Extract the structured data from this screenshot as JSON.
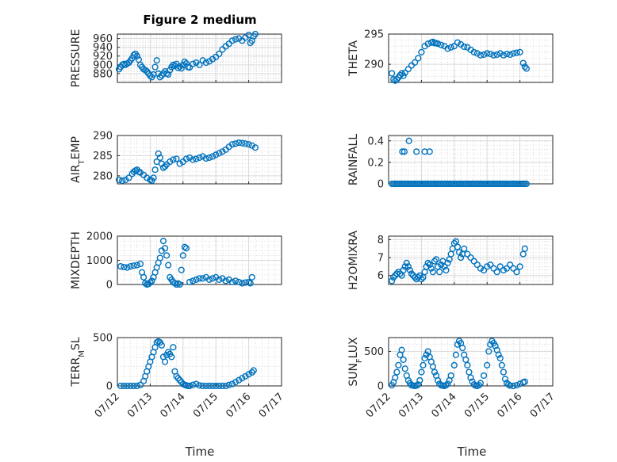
{
  "figure": {
    "title": "Figure 2 medium",
    "xlabel": "Time",
    "marker_color": "#0072BD",
    "xticks": [
      "07/12",
      "07/13",
      "07/14",
      "07/15",
      "07/16",
      "07/17"
    ]
  },
  "chart_data": [
    {
      "id": "pressure",
      "type": "scatter",
      "ylabel": "PRESSURE",
      "ylim": [
        860,
        970
      ],
      "yticks": [
        880,
        900,
        920,
        940,
        960
      ],
      "xlim": [
        0,
        5
      ],
      "grid": true,
      "x": [
        0.05,
        0.1,
        0.15,
        0.2,
        0.25,
        0.3,
        0.35,
        0.4,
        0.45,
        0.5,
        0.55,
        0.6,
        0.65,
        0.7,
        0.75,
        0.8,
        0.85,
        0.9,
        0.95,
        1.0,
        1.05,
        1.1,
        1.15,
        1.2,
        1.25,
        1.3,
        1.35,
        1.4,
        1.45,
        1.5,
        1.55,
        1.6,
        1.65,
        1.7,
        1.75,
        1.8,
        1.85,
        1.9,
        1.95,
        2.0,
        2.05,
        2.1,
        2.15,
        2.2,
        2.3,
        2.4,
        2.5,
        2.6,
        2.7,
        2.8,
        2.9,
        3.0,
        3.1,
        3.2,
        3.3,
        3.4,
        3.5,
        3.6,
        3.7,
        3.8,
        3.9,
        4.0,
        4.05,
        4.1,
        4.15,
        4.2
      ],
      "y": [
        890,
        895,
        900,
        902,
        900,
        903,
        905,
        910,
        915,
        922,
        925,
        920,
        912,
        900,
        895,
        890,
        888,
        885,
        880,
        875,
        872,
        878,
        895,
        910,
        880,
        872,
        876,
        880,
        885,
        880,
        878,
        888,
        895,
        900,
        898,
        902,
        893,
        896,
        892,
        900,
        907,
        903,
        895,
        894,
        902,
        905,
        900,
        910,
        905,
        908,
        913,
        918,
        925,
        935,
        942,
        948,
        955,
        958,
        960,
        955,
        962,
        968,
        950,
        955,
        965,
        970
      ]
    },
    {
      "id": "theta",
      "type": "scatter",
      "ylabel": "THETA",
      "ylim": [
        287,
        295
      ],
      "yticks": [
        290,
        295
      ],
      "xlim": [
        0,
        5
      ],
      "grid": true,
      "x": [
        0.1,
        0.15,
        0.2,
        0.25,
        0.3,
        0.35,
        0.4,
        0.45,
        0.5,
        0.6,
        0.7,
        0.8,
        0.9,
        1.0,
        1.1,
        1.2,
        1.3,
        1.35,
        1.4,
        1.45,
        1.5,
        1.6,
        1.7,
        1.8,
        1.9,
        2.0,
        2.1,
        2.2,
        2.3,
        2.4,
        2.5,
        2.6,
        2.7,
        2.8,
        2.9,
        3.0,
        3.1,
        3.2,
        3.3,
        3.4,
        3.5,
        3.6,
        3.7,
        3.8,
        3.9,
        4.0,
        4.1,
        4.15,
        4.2
      ],
      "y": [
        288.5,
        287.5,
        287.3,
        287.5,
        287.8,
        288.2,
        288.5,
        288.1,
        288.6,
        289.2,
        289.8,
        290.3,
        291,
        292,
        293,
        293.4,
        293.6,
        293.7,
        293.5,
        293.5,
        293.4,
        293.2,
        293.0,
        292.6,
        292.8,
        293.0,
        293.6,
        293.3,
        292.9,
        292.8,
        292.4,
        292.0,
        291.8,
        291.5,
        291.6,
        291.8,
        291.7,
        291.5,
        291.6,
        291.8,
        291.5,
        291.7,
        291.6,
        291.8,
        291.9,
        292.0,
        290.2,
        289.6,
        289.3
      ]
    },
    {
      "id": "air_temp",
      "type": "scatter",
      "ylabel": "AIR",
      "ylabel_sub": "T",
      "ylabel_rest": "EMP",
      "ylim": [
        278,
        290
      ],
      "yticks": [
        280,
        285,
        290
      ],
      "xlim": [
        0,
        5
      ],
      "grid": true,
      "x": [
        0.05,
        0.15,
        0.25,
        0.35,
        0.45,
        0.5,
        0.55,
        0.6,
        0.65,
        0.7,
        0.8,
        0.9,
        1.0,
        1.05,
        1.1,
        1.15,
        1.2,
        1.25,
        1.3,
        1.35,
        1.4,
        1.45,
        1.5,
        1.6,
        1.7,
        1.8,
        1.9,
        2.0,
        2.1,
        2.2,
        2.3,
        2.4,
        2.5,
        2.6,
        2.7,
        2.8,
        2.9,
        3.0,
        3.1,
        3.2,
        3.3,
        3.4,
        3.5,
        3.6,
        3.7,
        3.8,
        3.9,
        4.0,
        4.1,
        4.2
      ],
      "y": [
        279,
        278.8,
        279,
        279.5,
        280.5,
        281,
        281.3,
        281.5,
        281,
        280.8,
        280.2,
        279.5,
        279,
        278.8,
        279.5,
        281.5,
        283.5,
        285.5,
        284.5,
        283,
        282,
        282.3,
        282.8,
        283.5,
        284,
        284.2,
        283,
        283.5,
        284.2,
        284.5,
        284,
        284.2,
        284.5,
        284.8,
        284.3,
        284.5,
        284.8,
        285.2,
        285.6,
        286,
        286.5,
        287.2,
        287.8,
        288,
        288.2,
        288.1,
        288,
        287.8,
        287.5,
        287
      ]
    },
    {
      "id": "rainfall",
      "type": "scatter",
      "ylabel": "RAINFALL",
      "ylim": [
        0,
        0.45
      ],
      "yticks": [
        0,
        0.2,
        0.4
      ],
      "xlim": [
        0,
        5
      ],
      "grid": true,
      "x": [
        0.1,
        0.15,
        0.2,
        0.25,
        0.3,
        0.35,
        0.4,
        0.45,
        0.5,
        0.55,
        0.6,
        0.65,
        0.7,
        0.75,
        0.8,
        0.85,
        0.9,
        0.95,
        1.0,
        1.05,
        1.1,
        1.15,
        1.2,
        1.25,
        1.3,
        1.35,
        1.4,
        1.45,
        1.5,
        1.55,
        1.6,
        1.65,
        1.7,
        1.75,
        1.8,
        1.85,
        1.9,
        1.95,
        2.0,
        2.05,
        2.1,
        2.15,
        2.2,
        2.25,
        2.3,
        2.35,
        2.4,
        2.45,
        2.5,
        2.55,
        2.6,
        2.65,
        2.7,
        2.75,
        2.8,
        2.85,
        2.9,
        2.95,
        3.0,
        3.05,
        3.1,
        3.15,
        3.2,
        3.25,
        3.3,
        3.35,
        3.4,
        3.45,
        3.5,
        3.55,
        3.6,
        3.65,
        3.7,
        3.75,
        3.8,
        3.85,
        3.9,
        3.95,
        4.0,
        4.05,
        4.1,
        4.15,
        4.2,
        0.42,
        0.48,
        0.62,
        0.85,
        1.1,
        1.25
      ],
      "y": [
        0,
        0,
        0,
        0,
        0,
        0,
        0,
        0,
        0,
        0,
        0,
        0,
        0,
        0,
        0,
        0,
        0,
        0,
        0,
        0,
        0,
        0,
        0,
        0,
        0,
        0,
        0,
        0,
        0,
        0,
        0,
        0,
        0,
        0,
        0,
        0,
        0,
        0,
        0,
        0,
        0,
        0,
        0,
        0,
        0,
        0,
        0,
        0,
        0,
        0,
        0,
        0,
        0,
        0,
        0,
        0,
        0,
        0,
        0,
        0,
        0,
        0,
        0,
        0,
        0,
        0,
        0,
        0,
        0,
        0,
        0,
        0,
        0,
        0,
        0,
        0,
        0,
        0,
        0,
        0,
        0,
        0,
        0,
        0.3,
        0.3,
        0.4,
        0.3,
        0.3,
        0.3
      ]
    },
    {
      "id": "mixdepth",
      "type": "scatter",
      "ylabel": "MIXDEPTH",
      "ylim": [
        0,
        2000
      ],
      "yticks": [
        0,
        1000,
        2000
      ],
      "xlim": [
        0,
        5
      ],
      "grid": true,
      "x": [
        0.1,
        0.2,
        0.3,
        0.4,
        0.5,
        0.6,
        0.7,
        0.75,
        0.8,
        0.85,
        0.9,
        0.95,
        1.0,
        1.05,
        1.1,
        1.15,
        1.2,
        1.25,
        1.3,
        1.35,
        1.4,
        1.45,
        1.5,
        1.55,
        1.6,
        1.65,
        1.7,
        1.75,
        1.8,
        1.85,
        1.9,
        1.95,
        2.0,
        2.05,
        2.1,
        2.2,
        2.3,
        2.4,
        2.5,
        2.6,
        2.7,
        2.8,
        2.9,
        3.0,
        3.1,
        3.2,
        3.3,
        3.4,
        3.5,
        3.6,
        3.7,
        3.8,
        3.9,
        4.0,
        4.05,
        4.1
      ],
      "y": [
        750,
        720,
        700,
        750,
        780,
        800,
        850,
        500,
        300,
        50,
        0,
        20,
        80,
        150,
        300,
        500,
        700,
        900,
        1100,
        1400,
        1800,
        1500,
        1200,
        800,
        300,
        200,
        100,
        50,
        0,
        40,
        0,
        600,
        1200,
        1550,
        1500,
        100,
        150,
        200,
        250,
        250,
        300,
        200,
        250,
        300,
        200,
        250,
        150,
        200,
        100,
        150,
        100,
        50,
        80,
        100,
        50,
        300
      ]
    },
    {
      "id": "h2omixra",
      "type": "scatter",
      "ylabel": "H2OMIXRA",
      "ylim": [
        5.5,
        8.2
      ],
      "yticks": [
        6,
        7,
        8
      ],
      "xlim": [
        0,
        5
      ],
      "grid": true,
      "x": [
        0.1,
        0.15,
        0.2,
        0.25,
        0.3,
        0.35,
        0.4,
        0.45,
        0.5,
        0.55,
        0.6,
        0.65,
        0.7,
        0.75,
        0.8,
        0.85,
        0.9,
        0.95,
        1.0,
        1.05,
        1.1,
        1.15,
        1.2,
        1.25,
        1.3,
        1.35,
        1.4,
        1.45,
        1.5,
        1.55,
        1.6,
        1.65,
        1.7,
        1.75,
        1.8,
        1.85,
        1.9,
        1.95,
        2.0,
        2.05,
        2.1,
        2.15,
        2.2,
        2.25,
        2.3,
        2.4,
        2.5,
        2.6,
        2.7,
        2.8,
        2.9,
        3.0,
        3.1,
        3.2,
        3.3,
        3.4,
        3.5,
        3.6,
        3.7,
        3.8,
        3.9,
        4.0,
        4.1,
        4.15
      ],
      "y": [
        5.7,
        5.9,
        6.0,
        6.1,
        6.2,
        6.1,
        6.0,
        6.3,
        6.5,
        6.7,
        6.5,
        6.3,
        6.1,
        6.0,
        5.9,
        5.8,
        5.9,
        6.0,
        5.8,
        5.9,
        6.2,
        6.5,
        6.7,
        6.6,
        6.4,
        6.2,
        6.8,
        6.9,
        6.5,
        6.2,
        6.6,
        6.8,
        6.5,
        6.3,
        6.7,
        6.9,
        7.2,
        7.5,
        7.8,
        7.9,
        7.6,
        7.3,
        7.0,
        7.2,
        7.5,
        7.2,
        7.0,
        6.8,
        6.6,
        6.4,
        6.3,
        6.5,
        6.6,
        6.4,
        6.2,
        6.5,
        6.3,
        6.4,
        6.6,
        6.4,
        6.2,
        6.5,
        7.2,
        7.5
      ]
    },
    {
      "id": "terr_msl",
      "type": "scatter",
      "ylabel": "TERR",
      "ylabel_sub": "M",
      "ylabel_rest": "SL",
      "ylim": [
        0,
        500
      ],
      "yticks": [
        0,
        500
      ],
      "xlim": [
        0,
        5
      ],
      "grid": true,
      "x": [
        0.1,
        0.2,
        0.3,
        0.4,
        0.5,
        0.6,
        0.7,
        0.8,
        0.85,
        0.9,
        0.95,
        1.0,
        1.05,
        1.1,
        1.15,
        1.2,
        1.25,
        1.3,
        1.35,
        1.4,
        1.45,
        1.5,
        1.55,
        1.6,
        1.65,
        1.7,
        1.75,
        1.8,
        1.85,
        1.9,
        1.95,
        2.0,
        2.05,
        2.1,
        2.15,
        2.2,
        2.3,
        2.4,
        2.5,
        2.6,
        2.7,
        2.8,
        2.9,
        3.0,
        3.1,
        3.2,
        3.3,
        3.4,
        3.5,
        3.6,
        3.7,
        3.8,
        3.9,
        4.0,
        4.1,
        4.15
      ],
      "y": [
        0,
        0,
        0,
        0,
        0,
        0,
        10,
        50,
        100,
        150,
        200,
        250,
        300,
        350,
        400,
        450,
        460,
        450,
        420,
        300,
        250,
        320,
        350,
        330,
        300,
        400,
        150,
        100,
        80,
        60,
        40,
        20,
        10,
        5,
        0,
        0,
        10,
        20,
        5,
        0,
        0,
        0,
        0,
        0,
        0,
        0,
        0,
        10,
        20,
        40,
        60,
        80,
        100,
        120,
        140,
        160
      ]
    },
    {
      "id": "sun_flux",
      "type": "scatter",
      "ylabel": "SUN",
      "ylabel_sub": "F",
      "ylabel_rest": "LUX",
      "ylim": [
        0,
        700
      ],
      "yticks": [
        0,
        500
      ],
      "xlim": [
        0,
        5
      ],
      "grid": true,
      "x": [
        0.1,
        0.15,
        0.2,
        0.25,
        0.3,
        0.35,
        0.4,
        0.45,
        0.5,
        0.55,
        0.6,
        0.65,
        0.7,
        0.75,
        0.8,
        0.85,
        0.9,
        0.95,
        1.0,
        1.05,
        1.1,
        1.15,
        1.2,
        1.25,
        1.3,
        1.35,
        1.4,
        1.45,
        1.5,
        1.55,
        1.6,
        1.65,
        1.7,
        1.75,
        1.8,
        1.85,
        1.9,
        2.0,
        2.05,
        2.1,
        2.15,
        2.2,
        2.25,
        2.3,
        2.35,
        2.4,
        2.45,
        2.5,
        2.55,
        2.6,
        2.65,
        2.7,
        2.75,
        2.8,
        2.9,
        3.0,
        3.05,
        3.1,
        3.15,
        3.2,
        3.25,
        3.3,
        3.35,
        3.4,
        3.45,
        3.5,
        3.55,
        3.6,
        3.65,
        3.7,
        3.8,
        3.9,
        4.0,
        4.1,
        4.15
      ],
      "y": [
        10,
        50,
        120,
        200,
        300,
        450,
        520,
        380,
        250,
        150,
        80,
        40,
        10,
        5,
        0,
        5,
        20,
        80,
        200,
        300,
        400,
        450,
        500,
        420,
        350,
        280,
        200,
        150,
        80,
        30,
        10,
        5,
        0,
        10,
        30,
        80,
        150,
        300,
        450,
        600,
        650,
        620,
        550,
        450,
        380,
        300,
        200,
        120,
        60,
        20,
        5,
        0,
        10,
        40,
        150,
        300,
        500,
        600,
        650,
        620,
        580,
        520,
        450,
        400,
        300,
        200,
        100,
        40,
        20,
        5,
        0,
        10,
        30,
        50,
        60
      ]
    }
  ]
}
